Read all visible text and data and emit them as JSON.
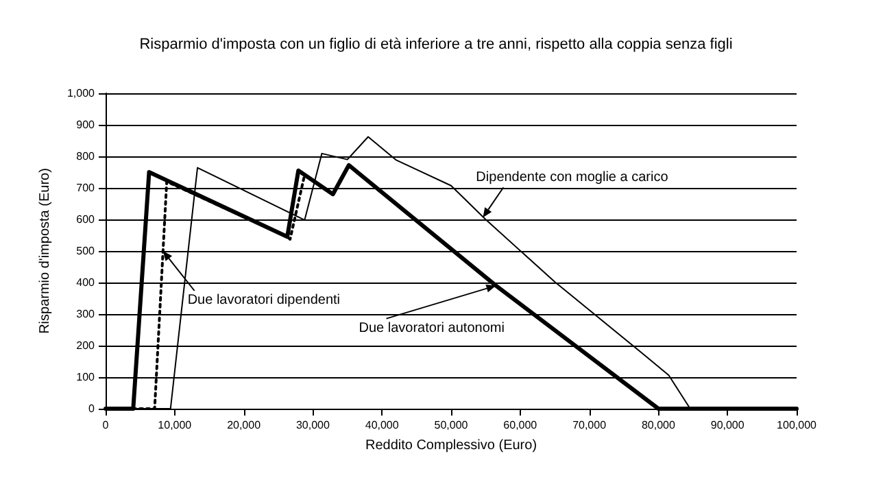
{
  "chart_data": {
    "type": "line",
    "title": "Risparmio d'imposta con un figlio di età inferiore a tre anni, rispetto alla coppia senza figli",
    "xlabel": "Reddito Complessivo (Euro)",
    "ylabel": "Risparmio d'imposta (Euro)",
    "xlim": [
      0,
      100000
    ],
    "xticks": [
      0,
      {
        "value": 10000,
        "label": "10,000"
      },
      {
        "value": 20000,
        "label": "20,000"
      },
      {
        "value": 30000,
        "label": "30,000"
      },
      {
        "value": 40000,
        "label": "40,000"
      },
      {
        "value": 50000,
        "label": "50,000"
      },
      {
        "value": 60000,
        "label": "60,000"
      },
      {
        "value": 70000,
        "label": "70,000"
      },
      {
        "value": 80000,
        "label": "80,000"
      },
      {
        "value": 90000,
        "label": "90,000"
      },
      {
        "value": 100000,
        "label": "100,000"
      }
    ],
    "ylim": [
      0,
      1000
    ],
    "yticks": [
      0,
      100,
      200,
      300,
      400,
      500,
      600,
      700,
      800,
      900,
      {
        "value": 1000,
        "label": "1,000"
      }
    ],
    "grid": "y",
    "marker": "none",
    "series": [
      {
        "color": "#000000",
        "line_style": "solid",
        "x": [
          0,
          4000,
          6300,
          26300,
          27900,
          32900,
          35200,
          56500,
          80000,
          100000
        ],
        "values": [
          0,
          0,
          750,
          545,
          755,
          680,
          772,
          390,
          0,
          0
        ]
      },
      {
        "color": "#000000",
        "line_style": "dotted",
        "x": [
          0,
          7100,
          8850,
          26300,
          26700,
          28800,
          32900,
          35200,
          56500,
          80000,
          100000
        ],
        "values": [
          0,
          0,
          720,
          545,
          537,
          741,
          680,
          772,
          390,
          0,
          0
        ]
      },
      {
        "color": "#000000",
        "line_style": "solid",
        "x": [
          0,
          9400,
          13300,
          28800,
          31300,
          35000,
          38000,
          42000,
          50000,
          55000,
          65000,
          77700,
          81500,
          84600,
          100000
        ],
        "values": [
          0,
          0,
          764,
          598,
          809,
          790,
          862,
          789,
          707,
          600,
          402,
          175,
          106,
          0,
          0
        ]
      }
    ],
    "annotations": [
      {
        "text": "Due lavoratori dipendenti",
        "x": 8300,
        "y": 500
      },
      {
        "text": "Due lavoratori autonomi",
        "x": 56500,
        "y": 390
      },
      {
        "text": "Dipendente con moglie a carico",
        "x": 54600,
        "y": 606
      }
    ]
  }
}
